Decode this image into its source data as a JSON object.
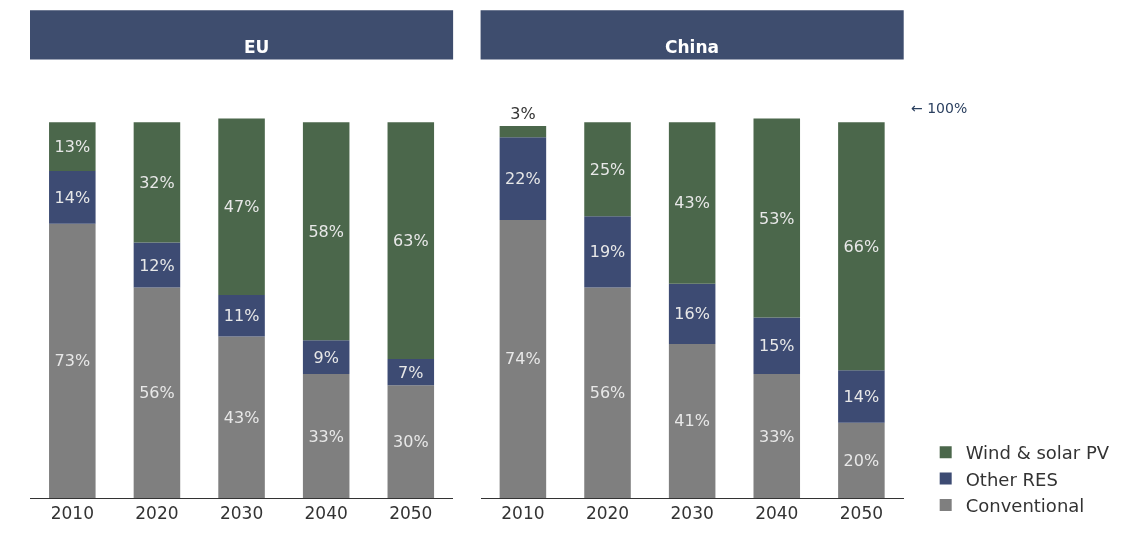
{
  "chart_data": [
    {
      "type": "bar",
      "title": "EU",
      "stacked": true,
      "categories": [
        "2010",
        "2020",
        "2030",
        "2040",
        "2050"
      ],
      "series": [
        {
          "color": "#7f7f7f",
          "values": [
            73,
            56,
            43,
            33,
            30
          ],
          "value_labels": [
            "73%",
            "56%",
            "43%",
            "33%",
            "30%"
          ]
        },
        {
          "color": "#3d4b73",
          "values": [
            14,
            12,
            11,
            9,
            7
          ],
          "value_labels": [
            "14%",
            "12%",
            "11%",
            "9%",
            "7%"
          ]
        },
        {
          "color": "#4b674b",
          "values": [
            13,
            32,
            47,
            58,
            63
          ],
          "value_labels": [
            "13%",
            "32%",
            "47%",
            "58%",
            "63%"
          ]
        }
      ]
    },
    {
      "type": "bar",
      "title": "China",
      "stacked": true,
      "legend": "bottom right",
      "categories": [
        "2010",
        "2020",
        "2030",
        "2040",
        "2050"
      ],
      "series": [
        {
          "name": "Conventional",
          "color": "#7f7f7f",
          "values": [
            74,
            56,
            41,
            33,
            20
          ],
          "value_labels": [
            "74%",
            "56%",
            "41%",
            "33%",
            "20%"
          ]
        },
        {
          "name": "Other RES",
          "color": "#3d4b73",
          "values": [
            22,
            19,
            16,
            15,
            14
          ],
          "value_labels": [
            "22%",
            "19%",
            "16%",
            "15%",
            "14%"
          ]
        },
        {
          "name": "Wind & solar PV",
          "color": "#4b674b",
          "values": [
            3,
            25,
            43,
            53,
            66
          ],
          "value_labels": [
            "3%",
            "25%",
            "43%",
            "53%",
            "66%"
          ]
        }
      ],
      "annotations": [
        "← 100%"
      ]
    }
  ]
}
